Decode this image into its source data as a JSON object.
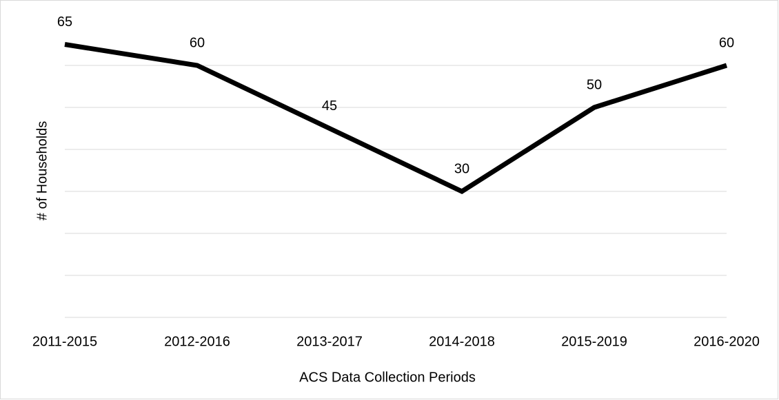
{
  "chart_data": {
    "type": "line",
    "categories": [
      "2011-2015",
      "2012-2016",
      "2013-2017",
      "2014-2018",
      "2015-2019",
      "2016-2020"
    ],
    "values": [
      65,
      60,
      45,
      30,
      50,
      60
    ],
    "color": "#000000",
    "ylim": [
      0,
      70
    ],
    "yticks": [
      0,
      10,
      20,
      30,
      40,
      50,
      60
    ],
    "grid": true,
    "xlabel": "ACS Data Collection Periods",
    "ylabel": "# of Households"
  }
}
